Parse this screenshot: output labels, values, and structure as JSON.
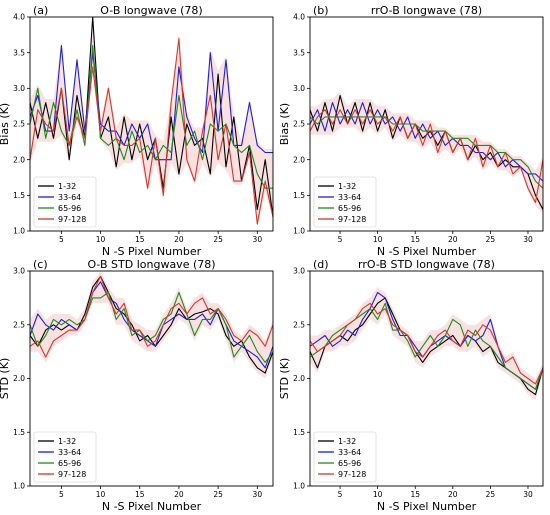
{
  "chart_data": [
    {
      "type": "line",
      "panel_label": "(a)",
      "title": "O-B longwave (78)",
      "xlabel": "N -S Pixel Number",
      "ylabel": "Bias (K)",
      "xlim": [
        1,
        32
      ],
      "ylim": [
        1.0,
        4.0
      ],
      "xticks": [
        5,
        10,
        15,
        20,
        25,
        30
      ],
      "yticks": [
        1.0,
        1.5,
        2.0,
        2.5,
        3.0,
        3.5,
        4.0
      ],
      "legend_position": "lower-left",
      "band": true,
      "x": [
        1,
        2,
        3,
        4,
        5,
        6,
        7,
        8,
        9,
        10,
        11,
        12,
        13,
        14,
        15,
        16,
        17,
        18,
        19,
        20,
        21,
        22,
        23,
        24,
        25,
        26,
        27,
        28,
        29,
        30,
        31,
        32
      ],
      "series": [
        {
          "name": "1-32",
          "color": "#000000",
          "values": [
            2.8,
            2.3,
            2.8,
            2.3,
            3.0,
            2.0,
            2.9,
            2.3,
            4.0,
            2.3,
            2.6,
            1.9,
            2.6,
            2.0,
            2.5,
            2.0,
            2.3,
            1.6,
            2.6,
            1.8,
            2.5,
            2.2,
            2.3,
            1.8,
            3.2,
            1.9,
            2.6,
            1.7,
            2.2,
            1.3,
            2.0,
            1.2
          ]
        },
        {
          "name": "33-64",
          "color": "#1f1fcf",
          "values": [
            2.6,
            2.9,
            2.4,
            2.4,
            3.6,
            2.4,
            3.4,
            2.4,
            3.5,
            2.5,
            2.4,
            2.4,
            2.2,
            2.5,
            2.3,
            2.5,
            2.0,
            2.0,
            2.0,
            3.3,
            2.6,
            2.3,
            2.1,
            3.5,
            2.4,
            3.4,
            2.2,
            2.2,
            2.8,
            2.2,
            2.1,
            2.1
          ]
        },
        {
          "name": "65-96",
          "color": "#1e8a1e",
          "values": [
            2.5,
            3.0,
            2.3,
            2.8,
            2.4,
            2.2,
            2.7,
            2.2,
            3.6,
            2.3,
            2.2,
            2.3,
            2.0,
            2.4,
            2.1,
            2.2,
            2.0,
            2.2,
            2.1,
            2.9,
            2.2,
            2.4,
            2.0,
            2.5,
            2.4,
            2.5,
            2.2,
            2.1,
            2.2,
            1.8,
            1.6,
            1.6
          ]
        },
        {
          "name": "97-128",
          "color": "#cc3a2c",
          "values": [
            2.0,
            2.7,
            2.5,
            2.4,
            3.0,
            2.2,
            2.6,
            2.3,
            3.3,
            2.4,
            3.0,
            2.3,
            2.2,
            2.2,
            2.3,
            1.6,
            2.3,
            1.5,
            2.8,
            3.7,
            2.0,
            1.7,
            2.4,
            2.9,
            2.0,
            2.5,
            1.7,
            1.7,
            2.1,
            1.1,
            1.7,
            1.2
          ]
        }
      ]
    },
    {
      "type": "line",
      "panel_label": "(b)",
      "title": "rrO-B longwave (78)",
      "xlabel": "N -S Pixel Number",
      "ylabel": "Bias (K)",
      "xlim": [
        1,
        32
      ],
      "ylim": [
        1.0,
        4.0
      ],
      "xticks": [
        5,
        10,
        15,
        20,
        25,
        30
      ],
      "yticks": [
        1.0,
        1.5,
        2.0,
        2.5,
        3.0,
        3.5,
        4.0
      ],
      "legend_position": "lower-left",
      "band": true,
      "x": [
        1,
        2,
        3,
        4,
        5,
        6,
        7,
        8,
        9,
        10,
        11,
        12,
        13,
        14,
        15,
        16,
        17,
        18,
        19,
        20,
        21,
        22,
        23,
        24,
        25,
        26,
        27,
        28,
        29,
        30,
        31,
        32
      ],
      "series": [
        {
          "name": "1-32",
          "color": "#000000",
          "values": [
            2.7,
            2.4,
            2.8,
            2.4,
            2.9,
            2.5,
            2.8,
            2.4,
            2.8,
            2.4,
            2.7,
            2.3,
            2.6,
            2.3,
            2.5,
            2.3,
            2.4,
            2.2,
            2.4,
            2.1,
            2.3,
            2.0,
            2.2,
            2.0,
            2.1,
            1.9,
            2.0,
            1.9,
            1.9,
            1.8,
            1.5,
            1.3
          ]
        },
        {
          "name": "33-64",
          "color": "#1f1fcf",
          "values": [
            2.5,
            2.7,
            2.4,
            2.8,
            2.5,
            2.7,
            2.5,
            2.8,
            2.5,
            2.7,
            2.5,
            2.6,
            2.4,
            2.6,
            2.3,
            2.5,
            2.3,
            2.4,
            2.2,
            2.3,
            2.2,
            2.2,
            2.1,
            2.1,
            2.0,
            2.1,
            1.9,
            2.0,
            1.9,
            1.8,
            1.8,
            1.7
          ]
        },
        {
          "name": "65-96",
          "color": "#1e8a1e",
          "values": [
            2.6,
            2.5,
            2.6,
            2.6,
            2.6,
            2.6,
            2.6,
            2.6,
            2.6,
            2.6,
            2.6,
            2.5,
            2.5,
            2.5,
            2.5,
            2.4,
            2.4,
            2.4,
            2.4,
            2.3,
            2.3,
            2.3,
            2.2,
            2.2,
            2.2,
            2.1,
            2.1,
            2.0,
            2.0,
            1.9,
            1.7,
            1.6
          ]
        },
        {
          "name": "97-128",
          "color": "#cc3a2c",
          "values": [
            2.4,
            2.6,
            2.7,
            2.5,
            2.7,
            2.5,
            2.7,
            2.5,
            2.7,
            2.5,
            2.6,
            2.4,
            2.6,
            2.3,
            2.5,
            2.2,
            2.5,
            2.1,
            2.4,
            2.1,
            2.3,
            2.0,
            2.3,
            1.9,
            2.2,
            1.9,
            2.1,
            1.8,
            1.9,
            1.6,
            1.4,
            2.0
          ]
        }
      ]
    },
    {
      "type": "line",
      "panel_label": "(c)",
      "title": "O-B STD longwave (78)",
      "xlabel": "N -S Pixel Number",
      "ylabel": "STD (K)",
      "xlim": [
        1,
        32
      ],
      "ylim": [
        1.0,
        3.0
      ],
      "xticks": [
        5,
        10,
        15,
        20,
        25,
        30
      ],
      "yticks": [
        1.0,
        1.5,
        2.0,
        2.5,
        3.0
      ],
      "legend_position": "lower-left",
      "band": true,
      "x": [
        1,
        2,
        3,
        4,
        5,
        6,
        7,
        8,
        9,
        10,
        11,
        12,
        13,
        14,
        15,
        16,
        17,
        18,
        19,
        20,
        21,
        22,
        23,
        24,
        25,
        26,
        27,
        28,
        29,
        30,
        31,
        32
      ],
      "series": [
        {
          "name": "1-32",
          "color": "#000000",
          "values": [
            2.4,
            2.3,
            2.45,
            2.5,
            2.45,
            2.5,
            2.45,
            2.6,
            2.85,
            2.95,
            2.8,
            2.65,
            2.6,
            2.5,
            2.35,
            2.4,
            2.3,
            2.4,
            2.5,
            2.65,
            2.55,
            2.6,
            2.62,
            2.65,
            2.6,
            2.4,
            2.3,
            2.35,
            2.2,
            2.1,
            2.05,
            2.25
          ]
        },
        {
          "name": "33-64",
          "color": "#1f1fcf",
          "values": [
            2.4,
            2.6,
            2.5,
            2.45,
            2.55,
            2.5,
            2.45,
            2.55,
            2.8,
            2.9,
            2.75,
            2.7,
            2.55,
            2.45,
            2.4,
            2.35,
            2.3,
            2.5,
            2.55,
            2.6,
            2.55,
            2.55,
            2.6,
            2.5,
            2.65,
            2.5,
            2.35,
            2.3,
            2.25,
            2.2,
            2.1,
            2.3
          ]
        },
        {
          "name": "65-96",
          "color": "#1e8a1e",
          "values": [
            2.5,
            2.3,
            2.4,
            2.55,
            2.5,
            2.55,
            2.5,
            2.55,
            2.75,
            2.75,
            2.8,
            2.55,
            2.65,
            2.4,
            2.45,
            2.35,
            2.4,
            2.55,
            2.6,
            2.8,
            2.6,
            2.4,
            2.55,
            2.55,
            2.65,
            2.5,
            2.2,
            2.3,
            2.4,
            2.25,
            2.15,
            2.25
          ]
        },
        {
          "name": "97-128",
          "color": "#cc3a2c",
          "values": [
            2.3,
            2.35,
            2.2,
            2.35,
            2.4,
            2.45,
            2.45,
            2.55,
            2.8,
            2.95,
            2.75,
            2.6,
            2.7,
            2.45,
            2.45,
            2.3,
            2.35,
            2.5,
            2.65,
            2.7,
            2.6,
            2.7,
            2.75,
            2.6,
            2.65,
            2.55,
            2.4,
            2.35,
            2.45,
            2.4,
            2.3,
            2.5
          ]
        }
      ]
    },
    {
      "type": "line",
      "panel_label": "(d)",
      "title": "rrO-B STD longwave (78)",
      "xlabel": "N -S Pixel Number",
      "ylabel": "STD (K)",
      "xlim": [
        1,
        32
      ],
      "ylim": [
        1.0,
        3.0
      ],
      "xticks": [
        5,
        10,
        15,
        20,
        25,
        30
      ],
      "yticks": [
        1.0,
        1.5,
        2.0,
        2.5,
        3.0
      ],
      "legend_position": "lower-left",
      "band": true,
      "x": [
        1,
        2,
        3,
        4,
        5,
        6,
        7,
        8,
        9,
        10,
        11,
        12,
        13,
        14,
        15,
        16,
        17,
        18,
        19,
        20,
        21,
        22,
        23,
        24,
        25,
        26,
        27,
        28,
        29,
        30,
        31,
        32
      ],
      "series": [
        {
          "name": "1-32",
          "color": "#000000",
          "values": [
            2.25,
            2.1,
            2.3,
            2.35,
            2.4,
            2.35,
            2.45,
            2.5,
            2.6,
            2.7,
            2.75,
            2.6,
            2.45,
            2.4,
            2.25,
            2.15,
            2.25,
            2.3,
            2.35,
            2.4,
            2.3,
            2.4,
            2.35,
            2.25,
            2.3,
            2.15,
            2.1,
            2.05,
            2.0,
            1.9,
            1.85,
            2.1
          ]
        },
        {
          "name": "33-64",
          "color": "#1f1fcf",
          "values": [
            2.3,
            2.35,
            2.4,
            2.3,
            2.35,
            2.45,
            2.4,
            2.55,
            2.65,
            2.8,
            2.75,
            2.55,
            2.4,
            2.4,
            2.3,
            2.2,
            2.3,
            2.35,
            2.4,
            2.35,
            2.3,
            2.4,
            2.35,
            2.4,
            2.55,
            2.3,
            2.1,
            2.05,
            2.0,
            1.95,
            1.9,
            2.1
          ]
        },
        {
          "name": "65-96",
          "color": "#1e8a1e",
          "values": [
            2.2,
            2.25,
            2.3,
            2.4,
            2.45,
            2.5,
            2.55,
            2.6,
            2.65,
            2.55,
            2.7,
            2.45,
            2.45,
            2.35,
            2.2,
            2.3,
            2.4,
            2.3,
            2.4,
            2.55,
            2.5,
            2.3,
            2.45,
            2.35,
            2.3,
            2.2,
            2.1,
            2.05,
            2.0,
            1.95,
            1.9,
            2.1
          ]
        },
        {
          "name": "97-128",
          "color": "#cc3a2c",
          "values": [
            2.35,
            2.25,
            2.3,
            2.35,
            2.4,
            2.5,
            2.55,
            2.65,
            2.7,
            2.6,
            2.65,
            2.5,
            2.45,
            2.4,
            2.25,
            2.2,
            2.3,
            2.4,
            2.45,
            2.35,
            2.3,
            2.45,
            2.4,
            2.5,
            2.45,
            2.3,
            2.15,
            2.2,
            2.05,
            2.0,
            1.95,
            2.1
          ]
        }
      ]
    }
  ]
}
